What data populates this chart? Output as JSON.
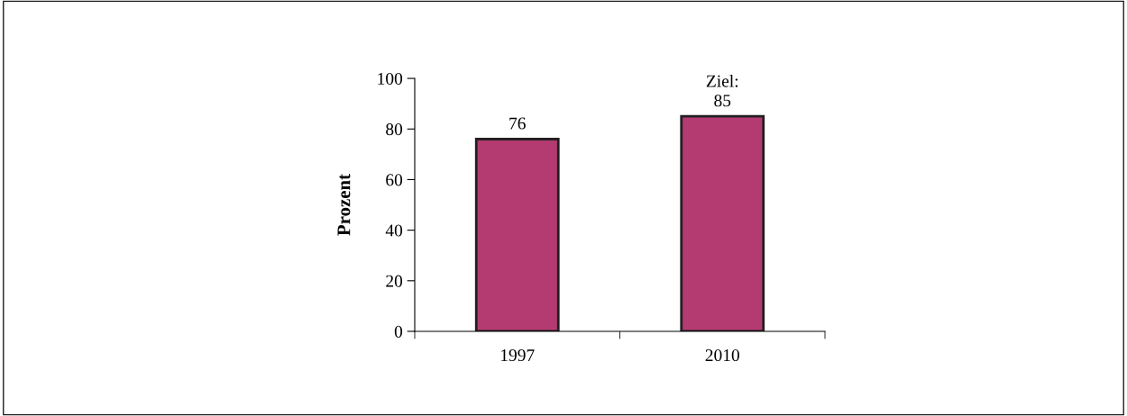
{
  "chart_data": {
    "type": "bar",
    "ylabel": "Prozent",
    "categories": [
      "1997",
      "2010"
    ],
    "values": [
      76,
      85
    ],
    "value_labels": [
      "76",
      "Ziel:\n85"
    ],
    "color": "#b33b72",
    "ylim": [
      0,
      100
    ],
    "yticks": [
      0,
      20,
      40,
      60,
      80,
      100
    ],
    "grid": false,
    "legend": false
  }
}
